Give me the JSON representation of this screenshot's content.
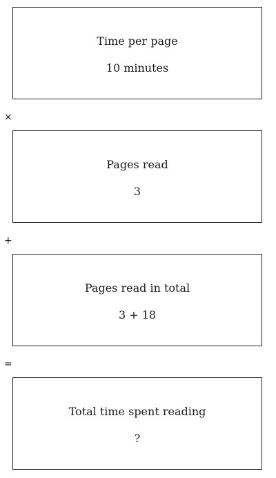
{
  "boxes": [
    {
      "label": "Time per page",
      "value": "10 minutes"
    },
    {
      "label": "Pages read",
      "value": "3"
    },
    {
      "label": "Pages read in total",
      "value": "3 + 18"
    },
    {
      "label": "Total time spent reading",
      "value": "?"
    }
  ],
  "operators": [
    "×",
    "+",
    "="
  ],
  "colors": {
    "border": "#222222",
    "text": "#1a1a1a",
    "background": "#ffffff"
  }
}
